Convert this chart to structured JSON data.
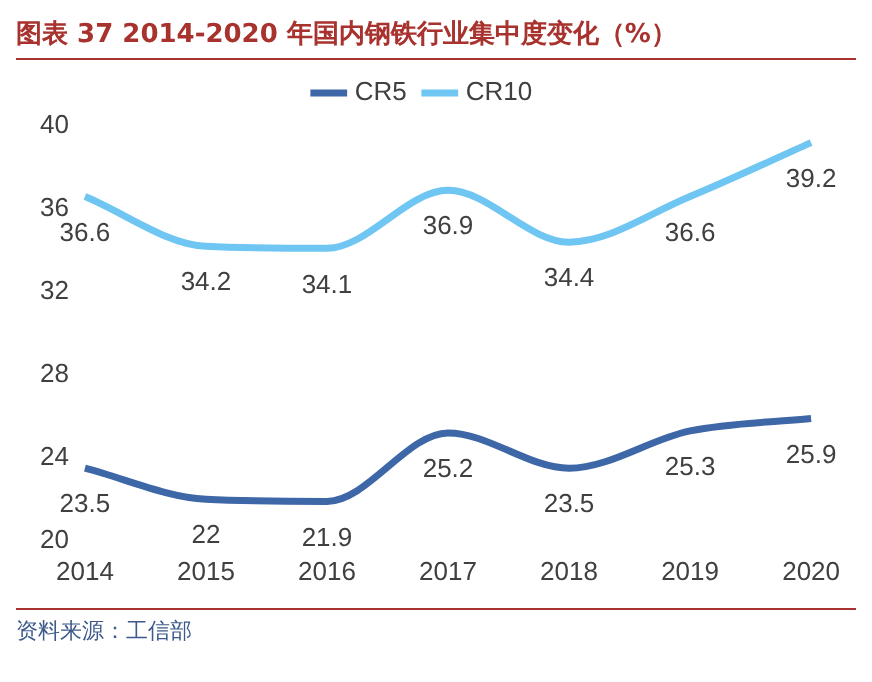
{
  "chart_data": {
    "type": "line",
    "title": "图表 37 2014-2020 年国内钢铁行业集中度变化（%）",
    "categories": [
      "2014",
      "2015",
      "2016",
      "2017",
      "2018",
      "2019",
      "2020"
    ],
    "series": [
      {
        "name": "CR5",
        "color": "#3d67a6",
        "values": [
          23.5,
          22,
          21.9,
          25.2,
          23.5,
          25.3,
          25.9
        ]
      },
      {
        "name": "CR10",
        "color": "#6fc6f3",
        "values": [
          36.6,
          34.2,
          34.1,
          36.9,
          34.4,
          36.6,
          39.2
        ]
      }
    ],
    "ylim": [
      20,
      40
    ],
    "yticks": [
      20,
      24,
      28,
      32,
      36,
      40
    ],
    "grid": false,
    "legend": "top",
    "marker": "none",
    "line_style": "solid",
    "data_labels": true,
    "annotations": [
      "资料来源：工信部"
    ]
  }
}
